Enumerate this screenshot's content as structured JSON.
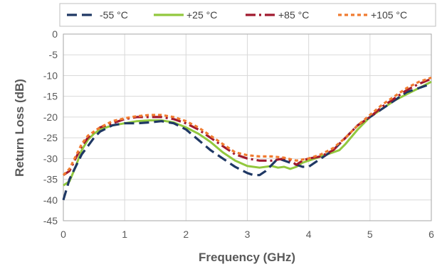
{
  "chart_data": {
    "type": "line",
    "xlabel": "Frequency (GHz)",
    "ylabel": "Return Loss (dB)",
    "xlim": [
      0,
      6
    ],
    "ylim": [
      -45,
      0
    ],
    "xticks": [
      "0",
      "1",
      "2",
      "3",
      "4",
      "5",
      "6"
    ],
    "yticks": [
      "0",
      "-5",
      "-10",
      "-15",
      "-20",
      "-25",
      "-30",
      "-35",
      "-40",
      "-45"
    ],
    "grid": true,
    "legend_position": "top",
    "series": [
      {
        "name": "-55 °C",
        "color": "#1F3864",
        "dash": "dash",
        "x": [
          0,
          0.1,
          0.2,
          0.3,
          0.4,
          0.5,
          0.6,
          0.8,
          1.0,
          1.2,
          1.4,
          1.6,
          1.8,
          2.0,
          2.2,
          2.4,
          2.6,
          2.8,
          3.0,
          3.1,
          3.2,
          3.3,
          3.4,
          3.5,
          3.6,
          3.7,
          3.8,
          3.9,
          4.0,
          4.2,
          4.4,
          4.6,
          4.8,
          5.0,
          5.2,
          5.4,
          5.6,
          5.8,
          6.0
        ],
        "y": [
          -40,
          -35,
          -32,
          -29,
          -27,
          -25,
          -23.5,
          -22,
          -21.5,
          -21.5,
          -21.3,
          -21,
          -21.5,
          -23,
          -25.5,
          -28,
          -30,
          -32,
          -33.5,
          -34,
          -34,
          -33,
          -31.5,
          -30,
          -30.5,
          -31,
          -31.5,
          -32,
          -32,
          -30,
          -28,
          -25,
          -22,
          -20,
          -18,
          -16,
          -14,
          -13,
          -12
        ]
      },
      {
        "name": "+25 °C",
        "color": "#92C83E",
        "dash": "solid",
        "x": [
          0,
          0.1,
          0.2,
          0.3,
          0.4,
          0.5,
          0.6,
          0.8,
          1.0,
          1.2,
          1.4,
          1.6,
          1.8,
          2.0,
          2.2,
          2.4,
          2.6,
          2.8,
          3.0,
          3.2,
          3.4,
          3.5,
          3.6,
          3.7,
          3.8,
          3.9,
          4.0,
          4.2,
          4.4,
          4.5,
          4.6,
          4.8,
          5.0,
          5.2,
          5.4,
          5.6,
          5.8,
          6.0
        ],
        "y": [
          -36.5,
          -35.5,
          -32,
          -28,
          -25.5,
          -24,
          -23,
          -22,
          -21.5,
          -21,
          -20.8,
          -20.8,
          -21.3,
          -22.5,
          -24,
          -26,
          -28.5,
          -30.5,
          -31.8,
          -32.2,
          -31.8,
          -32.2,
          -32,
          -32.5,
          -32,
          -31,
          -30.5,
          -29.5,
          -28.5,
          -28,
          -26.5,
          -23,
          -20,
          -18,
          -16,
          -14.5,
          -13,
          -11.5
        ]
      },
      {
        "name": "+85 °C",
        "color": "#A0192E",
        "dash": "dashdot",
        "x": [
          0,
          0.1,
          0.2,
          0.3,
          0.4,
          0.5,
          0.6,
          0.8,
          1.0,
          1.2,
          1.4,
          1.6,
          1.8,
          2.0,
          2.2,
          2.4,
          2.6,
          2.8,
          3.0,
          3.2,
          3.4,
          3.6,
          3.7,
          3.8,
          3.9,
          4.0,
          4.2,
          4.4,
          4.6,
          4.8,
          5.0,
          5.2,
          5.4,
          5.6,
          5.8,
          6.0
        ],
        "y": [
          -34,
          -33,
          -30,
          -27,
          -25,
          -23.5,
          -22.5,
          -21.5,
          -20.5,
          -20,
          -20,
          -20,
          -20.5,
          -21.5,
          -23,
          -25,
          -27,
          -29,
          -30,
          -30.5,
          -30.5,
          -30,
          -30.5,
          -31.5,
          -30.5,
          -30,
          -29.5,
          -28,
          -25,
          -22,
          -20,
          -17.5,
          -15.5,
          -13.5,
          -12,
          -10.8
        ]
      },
      {
        "name": "+105 °C",
        "color": "#F07B30",
        "dash": "dot",
        "x": [
          0,
          0.1,
          0.2,
          0.3,
          0.4,
          0.5,
          0.6,
          0.8,
          1.0,
          1.2,
          1.4,
          1.6,
          1.8,
          2.0,
          2.2,
          2.4,
          2.6,
          2.8,
          3.0,
          3.2,
          3.4,
          3.6,
          3.8,
          4.0,
          4.2,
          4.4,
          4.6,
          4.8,
          5.0,
          5.2,
          5.4,
          5.6,
          5.8,
          6.0
        ],
        "y": [
          -34,
          -32.5,
          -29.5,
          -26.5,
          -24.5,
          -23.5,
          -22.5,
          -21,
          -20.3,
          -19.8,
          -19.5,
          -19.5,
          -20,
          -21,
          -22.5,
          -24.5,
          -26.5,
          -28.5,
          -29.2,
          -29.5,
          -29.5,
          -29.8,
          -30.5,
          -30,
          -29,
          -27.5,
          -25,
          -22,
          -19.5,
          -17,
          -15,
          -13,
          -11.5,
          -10.5
        ]
      }
    ]
  }
}
